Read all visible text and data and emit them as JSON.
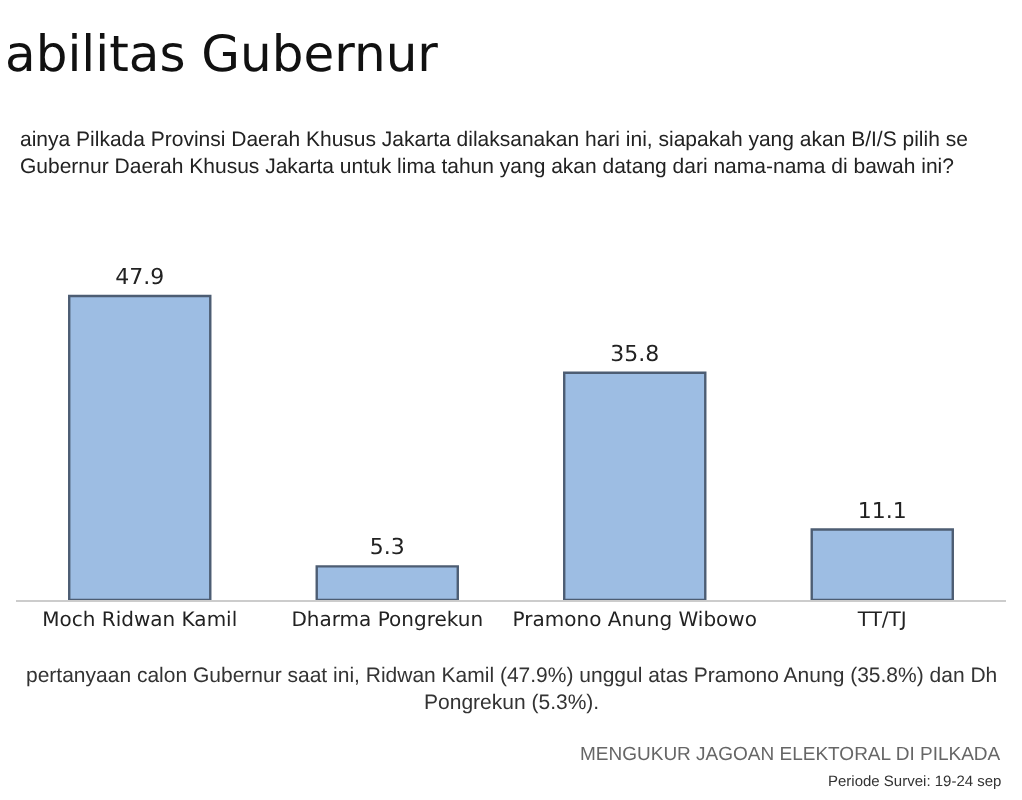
{
  "chart_data": {
    "type": "bar",
    "title": "abilitas Gubernur",
    "subtitle": "ainya Pilkada Provinsi Daerah Khusus Jakarta dilaksanakan hari ini, siapakah yang akan B/I/S pilih se\nGubernur Daerah Khusus Jakarta untuk lima tahun yang akan datang dari nama-nama di bawah ini?",
    "categories": [
      "Moch Ridwan Kamil",
      "Dharma Pongrekun",
      "Pramono Anung Wibowo",
      "TT/TJ"
    ],
    "values": [
      47.9,
      5.3,
      35.8,
      11.1
    ],
    "color": "#9dbde3",
    "data_labels": true,
    "legend": false,
    "annotations": [
      "pertanyaan calon Gubernur saat ini, Ridwan Kamil (47.9%) unggul atas Pramono Anung (35.8%) dan Dh\nPongrekun (5.3%).",
      "MENGUKUR JAGOAN ELEKTORAL DI PILKADA",
      "Periode Survei: 19-24 sep"
    ]
  }
}
